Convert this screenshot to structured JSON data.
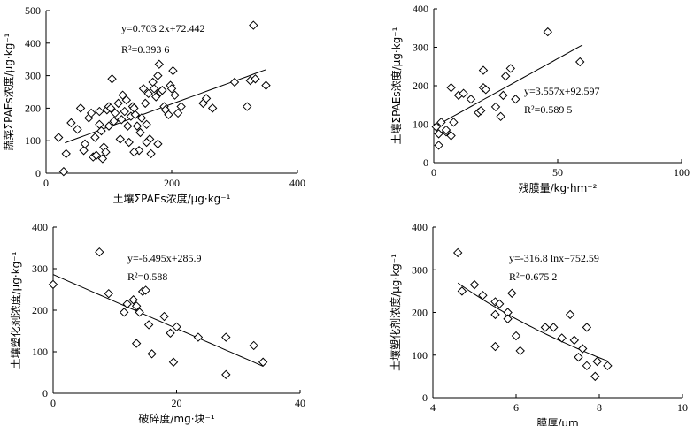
{
  "chart_data": [
    {
      "type": "scatter",
      "xlabel": "土壤ΣPAEs浓度/μg·kg⁻¹",
      "ylabel": "蔬菜ΣPAEs浓度/μg·kg⁻¹",
      "xlim": [
        0,
        400
      ],
      "ylim": [
        0,
        500
      ],
      "xticks": [
        0,
        200,
        400
      ],
      "yticks": [
        0,
        100,
        200,
        300,
        400,
        500
      ],
      "equation": "y=0.703 2x+72.442",
      "r2": "R²=0.393 6",
      "fit": {
        "kind": "linear",
        "a": 0.7032,
        "b": 72.442,
        "xrange": [
          30,
          350
        ]
      },
      "points": [
        [
          20,
          110
        ],
        [
          28,
          5
        ],
        [
          32,
          60
        ],
        [
          40,
          155
        ],
        [
          50,
          135
        ],
        [
          55,
          200
        ],
        [
          60,
          70
        ],
        [
          62,
          90
        ],
        [
          68,
          170
        ],
        [
          72,
          185
        ],
        [
          75,
          50
        ],
        [
          78,
          110
        ],
        [
          80,
          55
        ],
        [
          85,
          150
        ],
        [
          88,
          130
        ],
        [
          90,
          45
        ],
        [
          92,
          80
        ],
        [
          95,
          65
        ],
        [
          97,
          195
        ],
        [
          100,
          205
        ],
        [
          100,
          145
        ],
        [
          103,
          200
        ],
        [
          105,
          290
        ],
        [
          108,
          160
        ],
        [
          110,
          185
        ],
        [
          115,
          215
        ],
        [
          118,
          105
        ],
        [
          120,
          165
        ],
        [
          122,
          240
        ],
        [
          125,
          190
        ],
        [
          128,
          225
        ],
        [
          130,
          145
        ],
        [
          132,
          95
        ],
        [
          135,
          175
        ],
        [
          138,
          205
        ],
        [
          140,
          200
        ],
        [
          142,
          180
        ],
        [
          145,
          145
        ],
        [
          148,
          70
        ],
        [
          150,
          125
        ],
        [
          152,
          170
        ],
        [
          155,
          260
        ],
        [
          158,
          215
        ],
        [
          160,
          150
        ],
        [
          163,
          245
        ],
        [
          165,
          105
        ],
        [
          167,
          60
        ],
        [
          170,
          280
        ],
        [
          172,
          260
        ],
        [
          175,
          235
        ],
        [
          178,
          300
        ],
        [
          180,
          335
        ],
        [
          182,
          250
        ],
        [
          185,
          255
        ],
        [
          188,
          205
        ],
        [
          190,
          195
        ],
        [
          195,
          180
        ],
        [
          198,
          270
        ],
        [
          200,
          260
        ],
        [
          202,
          315
        ],
        [
          205,
          240
        ],
        [
          210,
          185
        ],
        [
          215,
          205
        ],
        [
          250,
          215
        ],
        [
          255,
          230
        ],
        [
          265,
          200
        ],
        [
          300,
          280
        ],
        [
          320,
          205
        ],
        [
          325,
          285
        ],
        [
          330,
          455
        ],
        [
          333,
          290
        ],
        [
          350,
          270
        ],
        [
          178,
          90
        ],
        [
          160,
          95
        ],
        [
          140,
          65
        ],
        [
          85,
          190
        ]
      ]
    },
    {
      "type": "scatter",
      "xlabel": "残膜量/kg·hm⁻²",
      "ylabel": "土壤ΣPAEs浓度/μg·kg⁻¹",
      "xlim": [
        0,
        100
      ],
      "ylim": [
        0,
        400
      ],
      "xticks": [
        0,
        50,
        100
      ],
      "yticks": [
        0,
        100,
        200,
        300,
        400
      ],
      "equation": "y=3.557x+92.597",
      "r2": "R²=0.589 5",
      "fit": {
        "kind": "linear",
        "a": 3.557,
        "b": 92.597,
        "xrange": [
          0,
          60
        ]
      },
      "points": [
        [
          1,
          93
        ],
        [
          2,
          75
        ],
        [
          2,
          45
        ],
        [
          3,
          105
        ],
        [
          5,
          80
        ],
        [
          5,
          85
        ],
        [
          7,
          70
        ],
        [
          7,
          195
        ],
        [
          10,
          175
        ],
        [
          12,
          180
        ],
        [
          15,
          165
        ],
        [
          18,
          130
        ],
        [
          19,
          135
        ],
        [
          20,
          240
        ],
        [
          20,
          195
        ],
        [
          21,
          190
        ],
        [
          25,
          145
        ],
        [
          27,
          120
        ],
        [
          28,
          175
        ],
        [
          29,
          225
        ],
        [
          31,
          245
        ],
        [
          33,
          165
        ],
        [
          46,
          340
        ],
        [
          59,
          262
        ],
        [
          8,
          105
        ]
      ]
    },
    {
      "type": "scatter",
      "xlabel": "破碎度/mg·块⁻¹",
      "ylabel": "土壤塑化剂浓度/μg·kg⁻¹",
      "xlim": [
        0,
        40
      ],
      "ylim": [
        0,
        400
      ],
      "xticks": [
        0,
        20,
        40
      ],
      "yticks": [
        0,
        100,
        200,
        300,
        400
      ],
      "equation": "y=-6.495x+285.9",
      "r2": "R²=0.588",
      "fit": {
        "kind": "linear",
        "a": -6.495,
        "b": 285.9,
        "xrange": [
          0,
          34
        ]
      },
      "points": [
        [
          0,
          262
        ],
        [
          7.5,
          340
        ],
        [
          9,
          240
        ],
        [
          11.5,
          195
        ],
        [
          12,
          215
        ],
        [
          13,
          225
        ],
        [
          13.5,
          210
        ],
        [
          13.5,
          120
        ],
        [
          14,
          195
        ],
        [
          14.5,
          245
        ],
        [
          15,
          248
        ],
        [
          15.5,
          165
        ],
        [
          16,
          95
        ],
        [
          18,
          185
        ],
        [
          19,
          145
        ],
        [
          19.5,
          75
        ],
        [
          20,
          160
        ],
        [
          23.5,
          135
        ],
        [
          28,
          135
        ],
        [
          28,
          45
        ],
        [
          32.5,
          115
        ],
        [
          34,
          75
        ]
      ]
    },
    {
      "type": "scatter",
      "xlabel": "膜厚/μm",
      "ylabel": "土壤塑化剂浓度/μg·kg⁻¹",
      "xlim": [
        4,
        10
      ],
      "ylim": [
        0,
        400
      ],
      "xticks": [
        4,
        6,
        8,
        10
      ],
      "yticks": [
        0,
        100,
        200,
        300,
        400
      ],
      "equation": "y=-316.8 lnx+752.59",
      "r2": "R²=0.675 2",
      "fit": {
        "kind": "log",
        "a": -316.8,
        "b": 752.59,
        "xrange": [
          4.6,
          8.2
        ]
      },
      "points": [
        [
          4.6,
          340
        ],
        [
          4.7,
          250
        ],
        [
          5,
          265
        ],
        [
          5.2,
          240
        ],
        [
          5.5,
          225
        ],
        [
          5.5,
          195
        ],
        [
          5.5,
          120
        ],
        [
          5.6,
          220
        ],
        [
          5.8,
          200
        ],
        [
          5.8,
          185
        ],
        [
          5.9,
          245
        ],
        [
          6,
          145
        ],
        [
          6.1,
          110
        ],
        [
          6.7,
          165
        ],
        [
          6.9,
          165
        ],
        [
          7.1,
          140
        ],
        [
          7.3,
          195
        ],
        [
          7.4,
          135
        ],
        [
          7.5,
          95
        ],
        [
          7.6,
          115
        ],
        [
          7.7,
          165
        ],
        [
          7.7,
          75
        ],
        [
          7.9,
          50
        ],
        [
          7.95,
          85
        ],
        [
          8.2,
          75
        ]
      ]
    }
  ]
}
